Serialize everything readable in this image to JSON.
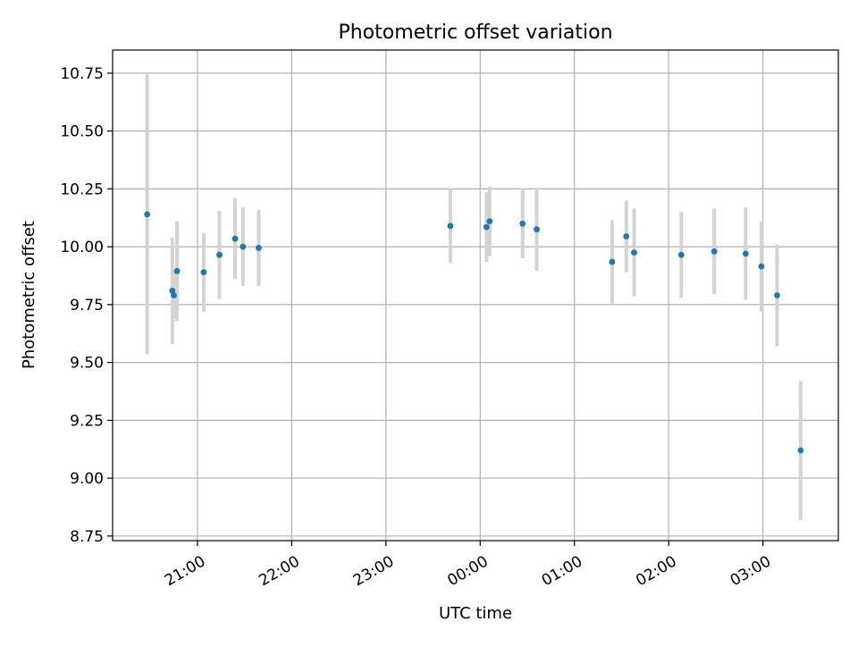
{
  "chart_data": {
    "type": "scatter",
    "title": "Photometric offset variation",
    "xlabel": "UTC time",
    "ylabel": "Photometric offset",
    "x_unit": "UTC time",
    "xlim": [
      "20:06",
      "03:48"
    ],
    "ylim": [
      8.73,
      10.85
    ],
    "grid": true,
    "x_ticks": [
      "21:00",
      "22:00",
      "23:00",
      "00:00",
      "01:00",
      "02:00",
      "03:00"
    ],
    "y_ticks": [
      "8.75",
      "9.00",
      "9.25",
      "9.50",
      "9.75",
      "10.00",
      "10.25",
      "10.50",
      "10.75"
    ],
    "colors": {
      "marker": "#1f77b4",
      "errorbar": "#d3d3d3",
      "grid": "#b0b0b0"
    },
    "points": [
      {
        "x": "20:28",
        "y": 10.14,
        "err": 0.605
      },
      {
        "x": "20:44",
        "y": 9.81,
        "err": 0.23
      },
      {
        "x": "20:45",
        "y": 9.79,
        "err": 0.1
      },
      {
        "x": "20:47",
        "y": 9.895,
        "err": 0.215
      },
      {
        "x": "21:04",
        "y": 9.89,
        "err": 0.17
      },
      {
        "x": "21:14",
        "y": 9.965,
        "err": 0.19
      },
      {
        "x": "21:24",
        "y": 10.035,
        "err": 0.175
      },
      {
        "x": "21:29",
        "y": 10.0,
        "err": 0.17
      },
      {
        "x": "21:39",
        "y": 9.995,
        "err": 0.165
      },
      {
        "x": "23:41",
        "y": 10.09,
        "err": 0.16
      },
      {
        "x": "00:04",
        "y": 10.085,
        "err": 0.15
      },
      {
        "x": "00:06",
        "y": 10.11,
        "err": 0.15
      },
      {
        "x": "00:27",
        "y": 10.1,
        "err": 0.15
      },
      {
        "x": "00:36",
        "y": 10.075,
        "err": 0.18
      },
      {
        "x": "01:24",
        "y": 9.935,
        "err": 0.18
      },
      {
        "x": "01:33",
        "y": 10.045,
        "err": 0.155
      },
      {
        "x": "01:38",
        "y": 9.975,
        "err": 0.19
      },
      {
        "x": "02:08",
        "y": 9.965,
        "err": 0.185
      },
      {
        "x": "02:29",
        "y": 9.98,
        "err": 0.185
      },
      {
        "x": "02:49",
        "y": 9.97,
        "err": 0.2
      },
      {
        "x": "02:59",
        "y": 9.915,
        "err": 0.195
      },
      {
        "x": "03:09",
        "y": 9.79,
        "err": 0.22
      },
      {
        "x": "03:24",
        "y": 9.12,
        "err": 0.3
      }
    ]
  }
}
